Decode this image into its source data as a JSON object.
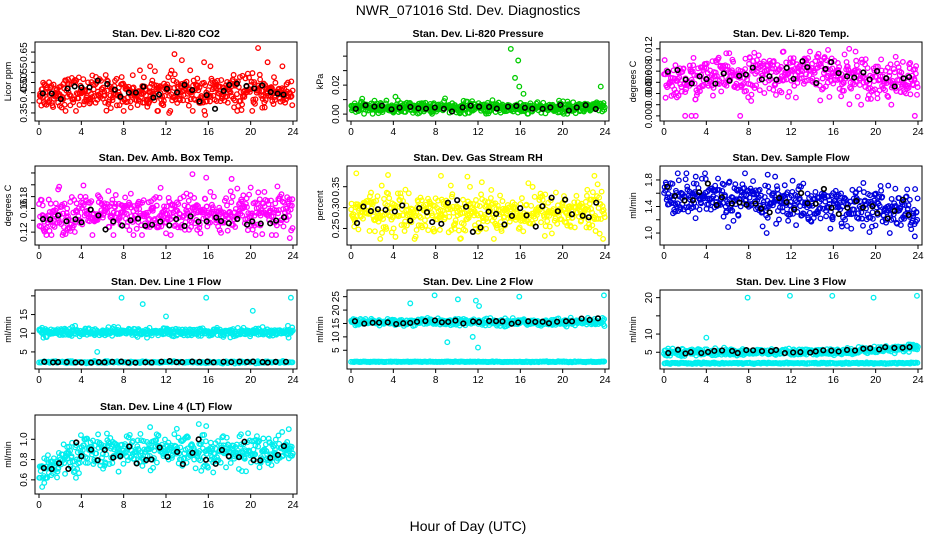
{
  "figure": {
    "title": "NWR_071016  Std. Dev. Diagnostics",
    "xlabel": "Hour of Day (UTC)"
  },
  "chart_data": [
    {
      "type": "scatter",
      "title": "Stan. Dev. Li-820 CO2",
      "ylabel": "Licor ppm",
      "color": "#ff0000",
      "xlim": [
        0,
        24
      ],
      "ylim": [
        0.33,
        0.68
      ],
      "yticks": [
        0.35,
        0.4,
        0.45,
        0.5,
        0.55,
        0.6,
        0.65
      ],
      "ytick_labels": [
        "0.35",
        "",
        "0.45",
        "0.50",
        "0.55",
        "",
        "0.65"
      ],
      "xticks": [
        0,
        4,
        8,
        12,
        16,
        20,
        24
      ],
      "bulk": {
        "points": 500,
        "mean": 0.45,
        "spread": 0.04,
        "min": 0.36,
        "max": 0.56
      },
      "ref_points": {
        "points": 32,
        "mean": 0.45,
        "spread": 0.035
      },
      "outliers": [
        [
          12.8,
          0.64
        ],
        [
          13.5,
          0.61
        ],
        [
          15.6,
          0.6
        ],
        [
          16.2,
          0.58
        ],
        [
          20.7,
          0.67
        ],
        [
          21.6,
          0.6
        ],
        [
          23.0,
          0.58
        ],
        [
          12.3,
          0.35
        ],
        [
          15.7,
          0.34
        ],
        [
          10.5,
          0.58
        ]
      ]
    },
    {
      "type": "scatter",
      "title": "Stan. Dev. Li-820 Pressure",
      "ylabel": "kPa",
      "color": "#00cc00",
      "xlim": [
        0,
        24
      ],
      "ylim": [
        -0.002,
        0.047
      ],
      "yticks": [
        0.0,
        0.01,
        0.02,
        0.03,
        0.04
      ],
      "ytick_labels": [
        "0.00",
        "",
        "0.02",
        "",
        ""
      ],
      "xticks": [
        0,
        4,
        8,
        12,
        16,
        20,
        24
      ],
      "bulk": {
        "points": 500,
        "mean": 0.0045,
        "spread": 0.002,
        "min": 0.0002,
        "max": 0.011
      },
      "ref_points": {
        "points": 28,
        "mean": 0.004,
        "spread": 0.0015
      },
      "outliers": [
        [
          15.1,
          0.045
        ],
        [
          15.8,
          0.037
        ],
        [
          15.5,
          0.025
        ],
        [
          15.9,
          0.019
        ],
        [
          16.3,
          0.014
        ],
        [
          23.6,
          0.019
        ],
        [
          4.2,
          0.012
        ]
      ]
    },
    {
      "type": "scatter",
      "title": "Stan. Dev. Li-820 Temp.",
      "ylabel": "degrees C",
      "color": "#ff00ff",
      "xlim": [
        0,
        24
      ],
      "ylim": [
        -0.0002,
        0.0125
      ],
      "yticks": [
        0.0,
        0.002,
        0.004,
        0.006,
        0.008,
        0.01,
        0.012
      ],
      "ytick_labels": [
        "0.000",
        "",
        "0.004",
        "0.006",
        "0.008",
        "",
        "0.012"
      ],
      "xticks": [
        0,
        4,
        8,
        12,
        16,
        20,
        24
      ],
      "bulk": {
        "points": 500,
        "mean": 0.0065,
        "spread": 0.0018,
        "min": 0.002,
        "max": 0.0115,
        "profile": "hump"
      },
      "ref_points": {
        "points": 32,
        "mean": 0.0065,
        "spread": 0.0015
      },
      "outliers": [
        [
          2.0,
          0.0
        ],
        [
          2.6,
          0.0
        ],
        [
          3.0,
          0.0
        ],
        [
          7.2,
          0.0
        ],
        [
          23.7,
          0.0
        ],
        [
          15.5,
          0.0118
        ],
        [
          17.5,
          0.012
        ],
        [
          18.1,
          0.0115
        ]
      ]
    },
    {
      "type": "scatter",
      "title": "Stan. Dev. Amb. Box Temp.",
      "ylabel": "degrees C",
      "color": "#ff00ff",
      "xlim": [
        0,
        24
      ],
      "ylim": [
        0.105,
        0.225
      ],
      "yticks": [
        0.12,
        0.14,
        0.16,
        0.18,
        0.2,
        0.22
      ],
      "ytick_labels": [
        "0.12",
        "",
        "0.16",
        "0.18",
        "",
        ""
      ],
      "xticks": [
        0,
        4,
        8,
        12,
        16,
        20,
        24
      ],
      "bulk": {
        "points": 500,
        "mean": 0.15,
        "spread": 0.018,
        "min": 0.115,
        "max": 0.215
      },
      "ref_points": {
        "points": 32,
        "mean": 0.138,
        "spread": 0.008
      },
      "outliers": [
        [
          14.5,
          0.218
        ],
        [
          15.8,
          0.212
        ],
        [
          18.2,
          0.21
        ],
        [
          23.7,
          0.11
        ],
        [
          12.0,
          0.118
        ]
      ]
    },
    {
      "type": "scatter",
      "title": "Stan. Dev. Gas Stream RH",
      "ylabel": "percent",
      "color": "#ffff00",
      "xlim": [
        0,
        24
      ],
      "ylim": [
        0.22,
        0.39
      ],
      "yticks": [
        0.25,
        0.3,
        0.35
      ],
      "ytick_labels": [
        "0.25",
        "0.30",
        "0.35"
      ],
      "xticks": [
        0,
        4,
        8,
        12,
        16,
        20,
        24
      ],
      "bulk": {
        "points": 500,
        "mean": 0.29,
        "spread": 0.025,
        "min": 0.225,
        "max": 0.38
      },
      "ref_points": {
        "points": 32,
        "mean": 0.29,
        "spread": 0.02
      },
      "outliers": [
        [
          0.5,
          0.382
        ],
        [
          3.5,
          0.378
        ],
        [
          8.5,
          0.376
        ],
        [
          11.0,
          0.374
        ],
        [
          23.0,
          0.376
        ]
      ]
    },
    {
      "type": "scatter",
      "title": "Stan. Dev. Sample Flow",
      "ylabel": "ml/min",
      "color": "#0000dd",
      "xlim": [
        0,
        24
      ],
      "ylim": [
        0.88,
        1.95
      ],
      "yticks": [
        1.0,
        1.2,
        1.4,
        1.6,
        1.8
      ],
      "ytick_labels": [
        "1.0",
        "",
        "1.4",
        "",
        "1.8"
      ],
      "xticks": [
        0,
        4,
        8,
        12,
        16,
        20,
        24
      ],
      "bulk": {
        "points": 500,
        "mean": 1.45,
        "spread": 0.15,
        "min": 1.0,
        "max": 1.9,
        "profile": "decline"
      },
      "ref_points": {
        "points": 32,
        "mean": 1.45,
        "spread": 0.13
      },
      "outliers": [
        [
          1.3,
          1.9
        ],
        [
          3.0,
          1.85
        ],
        [
          9.8,
          1.88
        ],
        [
          10.5,
          1.85
        ],
        [
          23.7,
          0.95
        ],
        [
          9.7,
          1.0
        ]
      ]
    },
    {
      "type": "scatter",
      "title": "Stan. Dev. Line 1 Flow",
      "ylabel": "ml/min",
      "color": "#00eeee",
      "xlim": [
        0,
        24
      ],
      "ylim": [
        1.5,
        20.5
      ],
      "yticks": [
        5,
        10,
        15,
        20
      ],
      "ytick_labels": [
        "5",
        "10",
        "15",
        ""
      ],
      "xticks": [
        0,
        4,
        8,
        12,
        16,
        20,
        24
      ],
      "bulk": {
        "points": 440,
        "mean": 10.3,
        "spread": 0.55,
        "min": 8.8,
        "max": 12.0
      },
      "bulk2": {
        "points": 200,
        "mean": 2.25,
        "spread": 0.15,
        "min": 1.9,
        "max": 2.6
      },
      "ref_points": {
        "points": 32,
        "mean": 2.3,
        "spread": 0.15
      },
      "outliers": [
        [
          5.5,
          5.0
        ],
        [
          7.8,
          19.5
        ],
        [
          9.8,
          17.8
        ],
        [
          15.8,
          19.5
        ],
        [
          20.2,
          16.0
        ],
        [
          23.8,
          19.5
        ],
        [
          12.0,
          14.5
        ]
      ]
    },
    {
      "type": "scatter",
      "title": "Stan. Dev. Line 2 Flow",
      "ylabel": "ml/min",
      "color": "#00eeee",
      "xlim": [
        0,
        24
      ],
      "ylim": [
        -0.5,
        26
      ],
      "yticks": [
        5,
        10,
        15,
        20,
        25
      ],
      "ytick_labels": [
        "5",
        "10",
        "15",
        "20",
        "25"
      ],
      "xticks": [
        0,
        4,
        8,
        12,
        16,
        20,
        24
      ],
      "bulk": {
        "points": 440,
        "mean": 15.5,
        "spread": 0.6,
        "min": 13.5,
        "max": 18.0
      },
      "bulk2": {
        "points": 220,
        "mean": 0.7,
        "spread": 0.08,
        "min": 0.5,
        "max": 0.9
      },
      "ref_points": {
        "points": 32,
        "mean": 15.6,
        "spread": 0.6
      },
      "outliers": [
        [
          5.6,
          22.5
        ],
        [
          7.9,
          25.5
        ],
        [
          10.1,
          24.0
        ],
        [
          11.8,
          23.5
        ],
        [
          12.1,
          21.5
        ],
        [
          15.9,
          25.0
        ],
        [
          23.9,
          25.5
        ],
        [
          12.0,
          6.0
        ],
        [
          9.1,
          8.0
        ],
        [
          11.5,
          10.0
        ]
      ]
    },
    {
      "type": "scatter",
      "title": "Stan. Dev. Line 3 Flow",
      "ylabel": "ml/min",
      "color": "#00eeee",
      "xlim": [
        0,
        24
      ],
      "ylim": [
        1.5,
        21
      ],
      "yticks": [
        5,
        10,
        15,
        20
      ],
      "ytick_labels": [
        "5",
        "10",
        "",
        "20"
      ],
      "xticks": [
        0,
        4,
        8,
        12,
        16,
        20,
        24
      ],
      "bulk": {
        "points": 440,
        "mean": 5.0,
        "spread": 0.45,
        "min": 3.9,
        "max": 7.8,
        "profile": "rise_end"
      },
      "bulk2": {
        "points": 220,
        "mean": 2.0,
        "spread": 0.1,
        "min": 1.8,
        "max": 2.3
      },
      "ref_points": {
        "points": 32,
        "mean": 5.1,
        "spread": 0.35
      },
      "outliers": [
        [
          4.0,
          9.0
        ],
        [
          7.9,
          20.0
        ],
        [
          11.9,
          20.5
        ],
        [
          15.9,
          20.5
        ],
        [
          19.8,
          20.0
        ],
        [
          23.9,
          20.5
        ]
      ]
    },
    {
      "type": "scatter",
      "title": "Stan. Dev. Line 4 (LT) Flow",
      "ylabel": "ml/min",
      "color": "#00eeee",
      "xlim": [
        0,
        24
      ],
      "ylim": [
        0.5,
        1.2
      ],
      "yticks": [
        0.6,
        0.8,
        1.0
      ],
      "ytick_labels": [
        "0.6",
        "0.8",
        "1.0"
      ],
      "xticks": [
        0,
        4,
        8,
        12,
        16,
        20,
        24
      ],
      "bulk": {
        "points": 500,
        "mean": 0.88,
        "spread": 0.08,
        "min": 0.62,
        "max": 1.12,
        "profile": "rise_start"
      },
      "ref_points": {
        "points": 32,
        "mean": 0.86,
        "spread": 0.08
      },
      "outliers": [
        [
          0.3,
          0.53
        ],
        [
          0.5,
          0.57
        ],
        [
          15.1,
          1.15
        ],
        [
          15.8,
          1.13
        ],
        [
          23.6,
          1.1
        ],
        [
          10.5,
          1.12
        ]
      ]
    }
  ]
}
